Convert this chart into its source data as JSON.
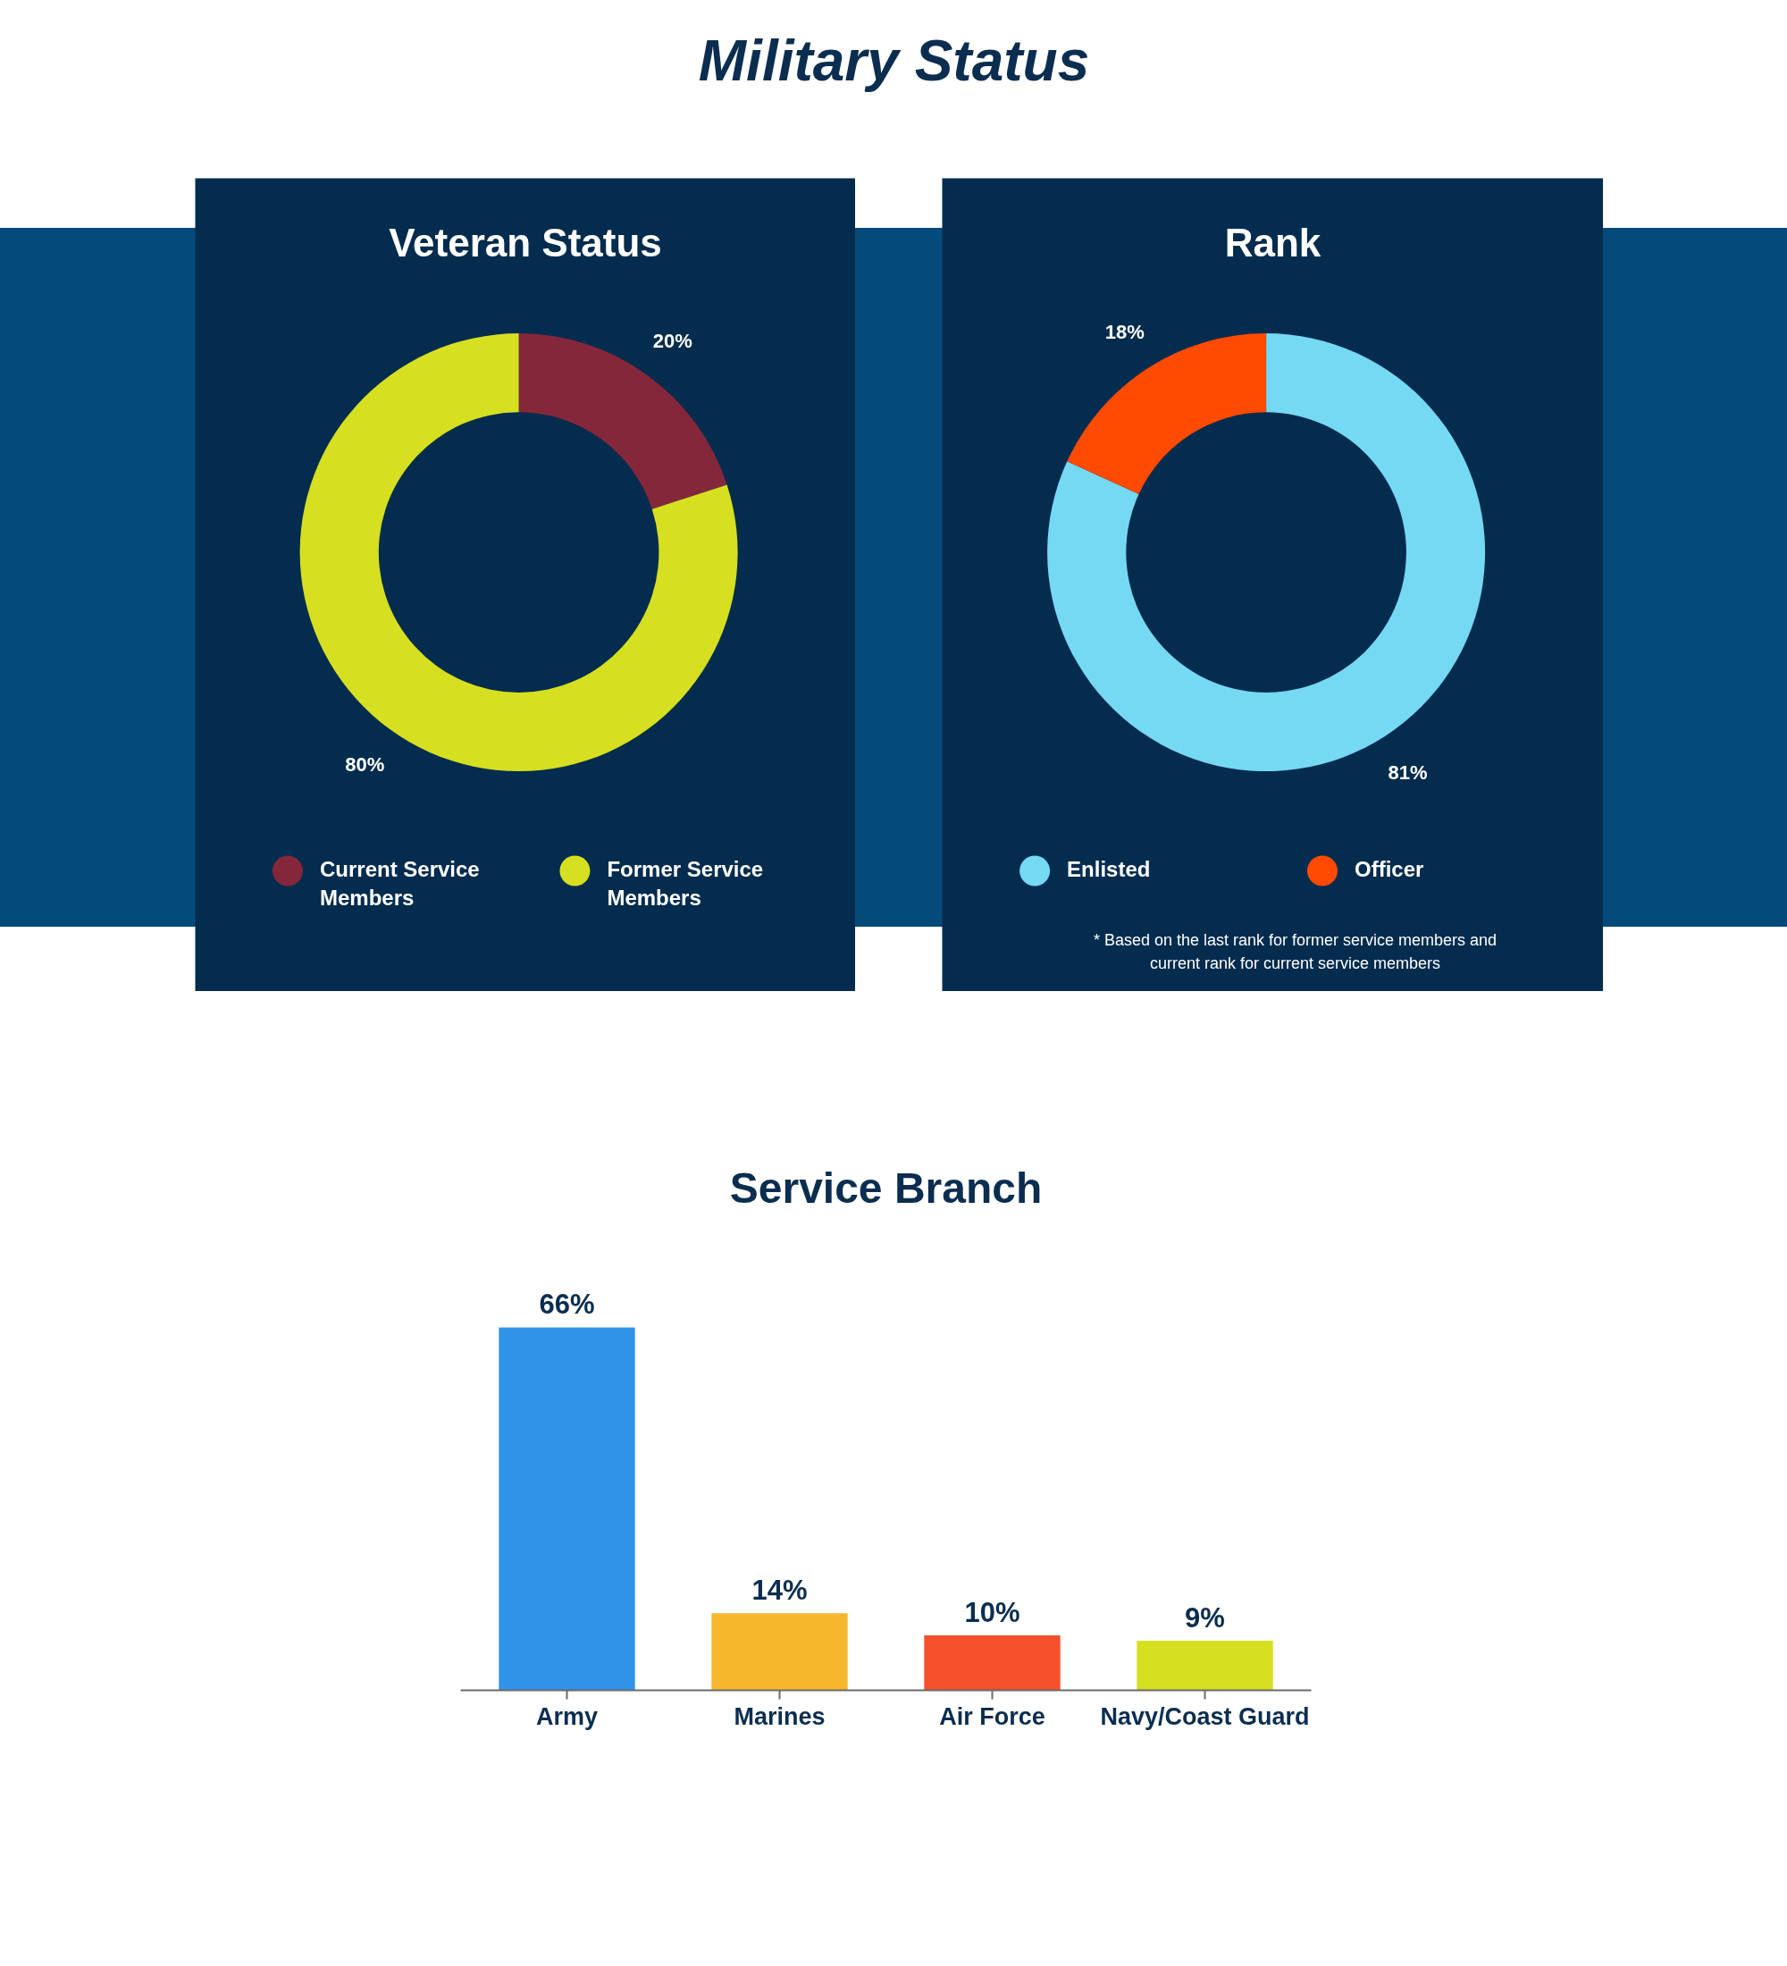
{
  "chart_data": [
    {
      "type": "other",
      "title": "Military Status"
    },
    {
      "type": "donut",
      "title": "Veteran Status",
      "categories": [
        "Current Service Members",
        "Former Service Members"
      ],
      "values": [
        20,
        80
      ],
      "colors": [
        "#85273a",
        "#d6df20"
      ],
      "value_labels": [
        "20%",
        "80%"
      ],
      "legend": "bottom"
    },
    {
      "type": "donut",
      "title": "Rank",
      "categories": [
        "Enlisted",
        "Officer"
      ],
      "values": [
        81,
        18
      ],
      "colors": [
        "#76d9f3",
        "#ff4a00"
      ],
      "value_labels": [
        "81%",
        "18%"
      ],
      "legend": "bottom",
      "annotations": [
        "* Based on the last rank for former service members and current rank for current service members"
      ]
    },
    {
      "type": "bar",
      "title": "Service Branch",
      "categories": [
        "Army",
        "Marines",
        "Air Force",
        "Navy/Coast Guard"
      ],
      "values": [
        66,
        14,
        10,
        9
      ],
      "colors": [
        "#3093e8",
        "#f5b82c",
        "#f4502b",
        "#d6df20"
      ],
      "value_labels": [
        "66%",
        "14%",
        "10%",
        "9%"
      ],
      "tick_labels": "x"
    }
  ]
}
